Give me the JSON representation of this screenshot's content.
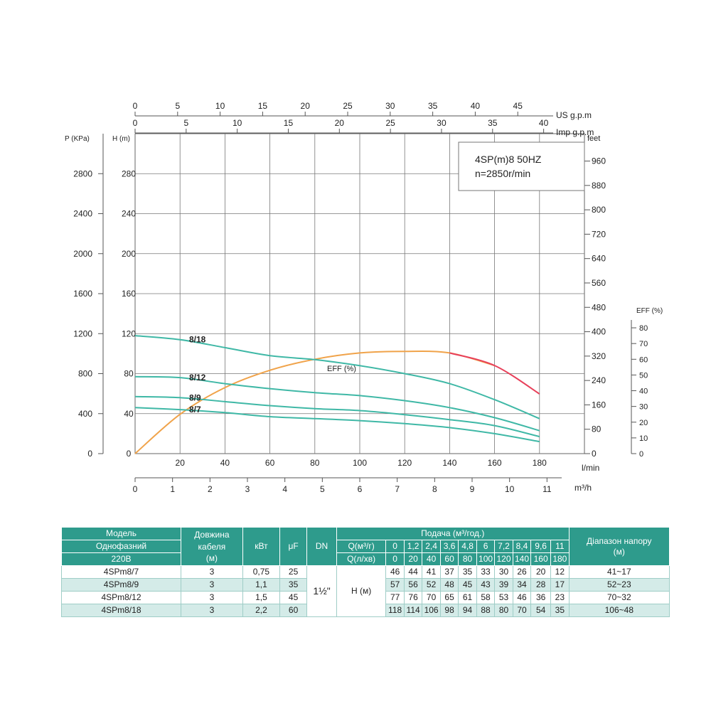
{
  "chart_data": {
    "type": "line",
    "title": "4SP(m)8  50HZ",
    "subtitle": "n=2850r/min",
    "xlabel": "l/min",
    "x_ticks": [
      0,
      20,
      40,
      60,
      80,
      100,
      120,
      140,
      160,
      180
    ],
    "xlim": [
      0,
      200
    ],
    "ylabel_left": "H (m)",
    "y_ticks": [
      0,
      40,
      80,
      120,
      160,
      200,
      240,
      280
    ],
    "ylim": [
      0,
      320
    ],
    "pressure_axis": {
      "label": "P (KPa)",
      "ticks": [
        0,
        400,
        800,
        1200,
        1600,
        2000,
        2400,
        2800
      ]
    },
    "feet_axis": {
      "label": "feet",
      "ticks": [
        0,
        80,
        160,
        240,
        320,
        400,
        480,
        560,
        640,
        720,
        800,
        880,
        960
      ]
    },
    "eff_axis": {
      "label": "EFF (%)",
      "ticks": [
        0,
        10,
        20,
        30,
        40,
        50,
        60,
        70,
        80
      ]
    },
    "us_gpm_axis": {
      "label": "US g.p.m",
      "ticks": [
        0,
        5,
        10,
        15,
        20,
        25,
        30,
        35,
        40,
        45
      ]
    },
    "imp_gpm_axis": {
      "label": "Imp g.p.m",
      "ticks": [
        0,
        5,
        10,
        15,
        20,
        25,
        30,
        35,
        40
      ]
    },
    "m3h_axis": {
      "label": "m³/h",
      "ticks": [
        0,
        1,
        2,
        3,
        4,
        5,
        6,
        7,
        8,
        9,
        10,
        11
      ]
    },
    "grid": true,
    "series": [
      {
        "name": "8/18",
        "x": [
          0,
          20,
          40,
          60,
          80,
          100,
          120,
          140,
          160,
          180
        ],
        "y": [
          118,
          114,
          106,
          98,
          94,
          88,
          80,
          70,
          54,
          35
        ],
        "color": "#3fb8a6"
      },
      {
        "name": "8/12",
        "x": [
          0,
          20,
          40,
          60,
          80,
          100,
          120,
          140,
          160,
          180
        ],
        "y": [
          77,
          76,
          70,
          65,
          61,
          58,
          53,
          46,
          36,
          23
        ],
        "color": "#3fb8a6"
      },
      {
        "name": "8/9",
        "x": [
          0,
          20,
          40,
          60,
          80,
          100,
          120,
          140,
          160,
          180
        ],
        "y": [
          57,
          56,
          52,
          48,
          45,
          43,
          39,
          34,
          28,
          17
        ],
        "color": "#3fb8a6"
      },
      {
        "name": "8/7",
        "x": [
          0,
          20,
          40,
          60,
          80,
          100,
          120,
          140,
          160,
          180
        ],
        "y": [
          46,
          44,
          41,
          37,
          35,
          33,
          30,
          26,
          20,
          12
        ],
        "color": "#3fb8a6"
      }
    ],
    "efficiency": {
      "name": "EFF (%)",
      "x": [
        0,
        20,
        40,
        60,
        80,
        100,
        120,
        140,
        160,
        180
      ],
      "y_percent": [
        0,
        25,
        42,
        53,
        60,
        64,
        65,
        64,
        56,
        38
      ],
      "color": "#f0a34a",
      "tail_color": "#e8405a"
    }
  },
  "table": {
    "headers": {
      "model": [
        "Модель",
        "Однофазний",
        "220В"
      ],
      "cable": [
        "Довжина кабеля",
        "(м)"
      ],
      "kw": "кВт",
      "uf": "μF",
      "dn": "DN",
      "flow_title": "Подача (м³/год.)",
      "q_m3h_label": "Q(м³/г)",
      "q_lmin_label": "Q(л/хв)",
      "q_m3h": [
        "0",
        "1,2",
        "2,4",
        "3,6",
        "4,8",
        "6",
        "7,2",
        "8,4",
        "9,6",
        "11"
      ],
      "q_lmin": [
        "0",
        "20",
        "40",
        "60",
        "80",
        "100",
        "120",
        "140",
        "160",
        "180"
      ],
      "range": [
        "Діапазон напору",
        "(м)"
      ]
    },
    "dn_value": "1½\"",
    "h_label": "H (м)",
    "rows": [
      {
        "model": "4SPm8/7",
        "cable": "3",
        "kw": "0,75",
        "uf": "25",
        "h": [
          "46",
          "44",
          "41",
          "37",
          "35",
          "33",
          "30",
          "26",
          "20",
          "12"
        ],
        "range": "41~17"
      },
      {
        "model": "4SPm8/9",
        "cable": "3",
        "kw": "1,1",
        "uf": "35",
        "h": [
          "57",
          "56",
          "52",
          "48",
          "45",
          "43",
          "39",
          "34",
          "28",
          "17"
        ],
        "range": "52~23"
      },
      {
        "model": "4SPm8/12",
        "cable": "3",
        "kw": "1,5",
        "uf": "45",
        "h": [
          "77",
          "76",
          "70",
          "65",
          "61",
          "58",
          "53",
          "46",
          "36",
          "23"
        ],
        "range": "70~32"
      },
      {
        "model": "4SPm8/18",
        "cable": "3",
        "kw": "2,2",
        "uf": "60",
        "h": [
          "118",
          "114",
          "106",
          "98",
          "94",
          "88",
          "80",
          "70",
          "54",
          "35"
        ],
        "range": "106~48"
      }
    ]
  }
}
